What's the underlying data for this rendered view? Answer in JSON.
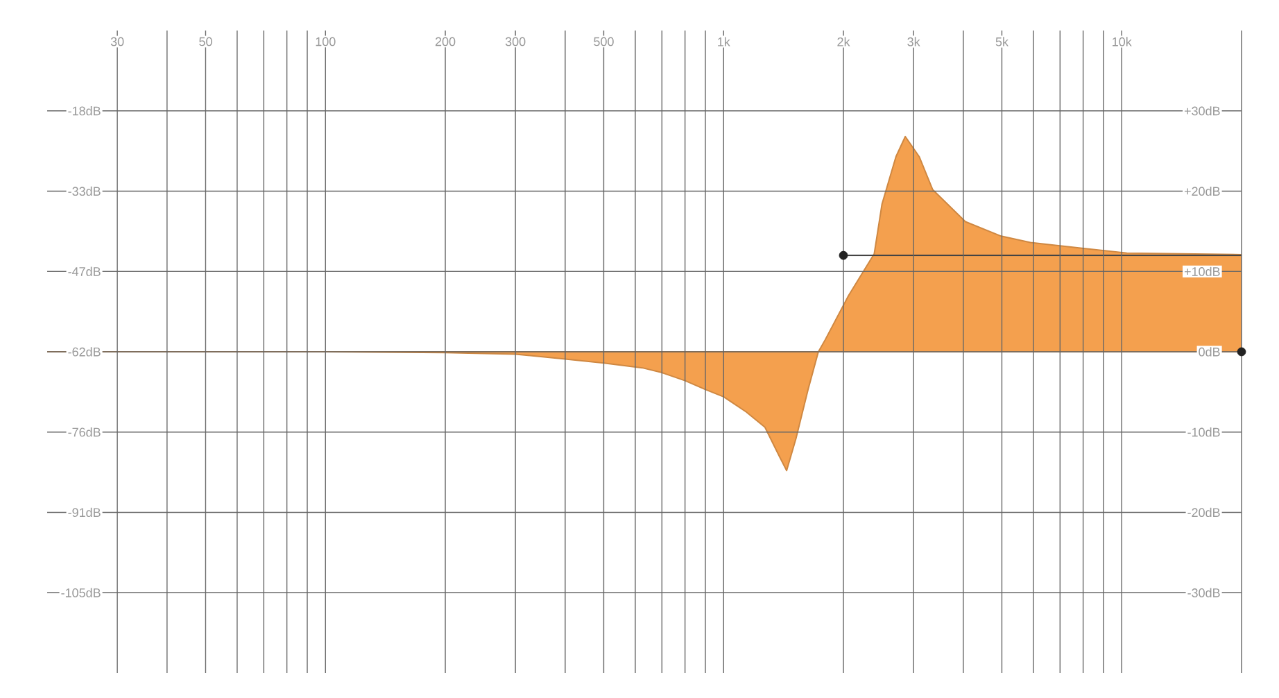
{
  "chart_data": {
    "type": "area",
    "xlim": [
      20,
      20000
    ],
    "xticks": [
      30,
      {
        "value": 40,
        "label": null
      },
      50,
      {
        "value": 60,
        "label": null
      },
      {
        "value": 70,
        "label": null
      },
      {
        "value": 80,
        "label": null
      },
      {
        "value": 90,
        "label": null
      },
      100,
      200,
      300,
      {
        "value": 400,
        "label": null
      },
      500,
      {
        "value": 600,
        "label": null
      },
      {
        "value": 700,
        "label": null
      },
      {
        "value": 800,
        "label": null
      },
      {
        "value": 900,
        "label": null
      },
      {
        "value": 1000,
        "label": "1k"
      },
      {
        "value": 2000,
        "label": "2k"
      },
      {
        "value": 3000,
        "label": "3k"
      },
      {
        "value": 4000,
        "label": null
      },
      {
        "value": 5000,
        "label": "5k"
      },
      {
        "value": 6000,
        "label": null
      },
      {
        "value": 7000,
        "label": null
      },
      {
        "value": 8000,
        "label": null
      },
      {
        "value": 9000,
        "label": null
      },
      {
        "value": 10000,
        "label": "10k"
      },
      {
        "value": 20000,
        "label": null
      }
    ],
    "log": "x",
    "ylim": [
      -120,
      -4
    ],
    "yticks": [
      {
        "value": -18.5,
        "label": "-18dB"
      },
      {
        "value": -33,
        "label": "-33dB"
      },
      {
        "value": -47.5,
        "label": "-47dB"
      },
      {
        "value": -62,
        "label": "-62dB"
      },
      {
        "value": -76.5,
        "label": "-76dB"
      },
      {
        "value": -91,
        "label": "-91dB"
      },
      {
        "value": -105.5,
        "label": "-105dB"
      }
    ],
    "y2lim": [
      -40,
      40
    ],
    "y2ticks": [
      {
        "value": 30,
        "label": "+30dB"
      },
      {
        "value": 20,
        "label": "+20dB"
      },
      {
        "value": 10,
        "label": "+10dB"
      },
      {
        "value": 0,
        "label": "0dB"
      },
      {
        "value": -10,
        "label": "-10dB"
      },
      {
        "value": -20,
        "label": "-20dB"
      },
      {
        "value": -30,
        "label": "-30dB"
      }
    ],
    "grid": true,
    "series": [
      {
        "type": "area",
        "axis": "y2",
        "color": "#f4a04e",
        "x": [
          20,
          100,
          200,
          300,
          400,
          500,
          625,
          700,
          800,
          900,
          1000,
          1140,
          1270,
          1380,
          1440,
          1520,
          1630,
          1730,
          1800,
          2060,
          2390,
          2500,
          2710,
          2860,
          3100,
          3350,
          4050,
          4980,
          5900,
          7950,
          10300,
          20000
        ],
        "values": [
          0,
          0,
          -0.1,
          -0.3,
          -0.9,
          -1.4,
          -2.0,
          -2.6,
          -3.6,
          -4.7,
          -5.6,
          -7.5,
          -9.4,
          -13,
          -14.8,
          -10.8,
          -4.7,
          0,
          1.5,
          7,
          12.2,
          18.4,
          24.3,
          26.8,
          24.3,
          20.2,
          16.2,
          14.4,
          13.6,
          12.9,
          12.3,
          12.1
        ]
      },
      {
        "type": "line",
        "axis": "y2",
        "color": "#444444",
        "x": [
          2000,
          20000
        ],
        "values": [
          12,
          12
        ]
      },
      {
        "type": "scatter",
        "axis": "y2",
        "color": "#222222",
        "marker": "circle",
        "x": [
          2000,
          20000
        ],
        "values": [
          12,
          0
        ]
      }
    ]
  }
}
